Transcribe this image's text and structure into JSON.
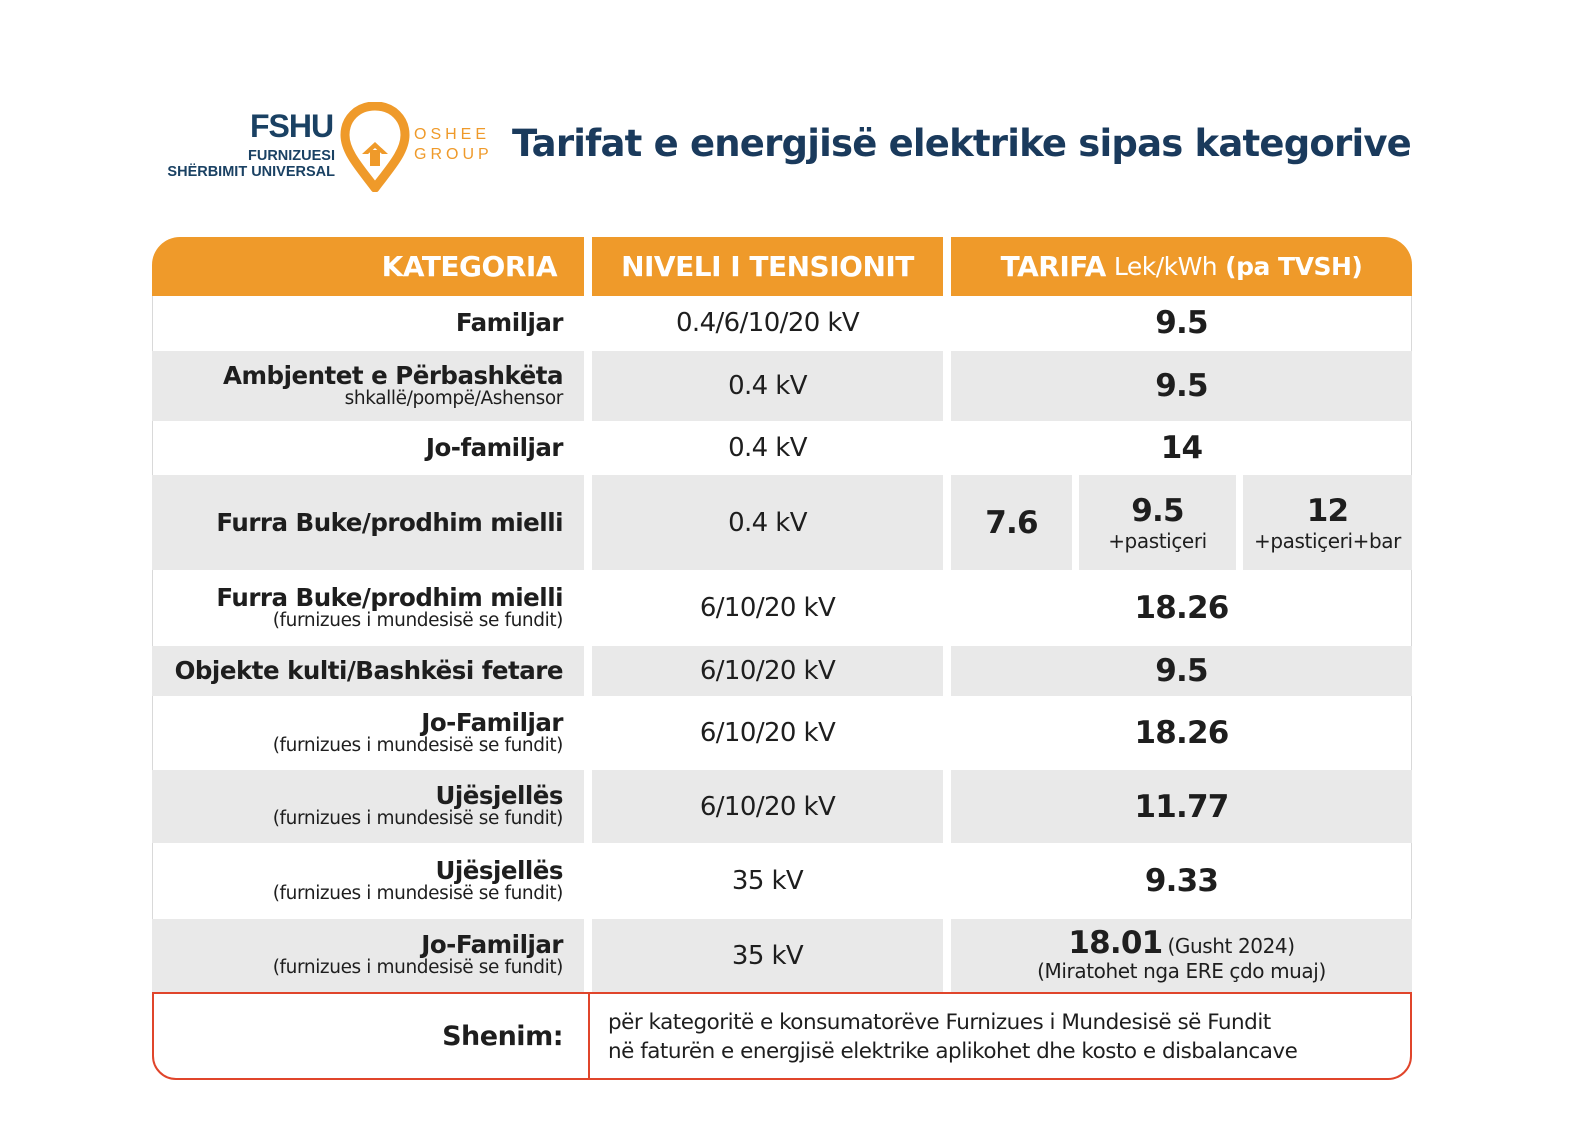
{
  "logo": {
    "abbr": "FSHU",
    "line1": "FURNIZUESI",
    "line2": "SHËRBIMIT UNIVERSAL",
    "group_line1": "OSHEE",
    "group_line2": "GROUP",
    "accent_color": "#ef9a2a",
    "brand_color": "#1a4163"
  },
  "title": "Tarifat e energjisë elektrike sipas kategorive",
  "table": {
    "header": {
      "kategoria": "KATEGORIA",
      "niveli": "NIVELI I TENSIONIT",
      "tarifa": "TARIFA",
      "tarifa_unit": "Lek/kWh",
      "tarifa_vat": "(pa TVSH)"
    },
    "header_color": "#ef9a2a",
    "rows": [
      {
        "kategoria": "Familjar",
        "sub": "",
        "niveli": "0.4/6/10/20 kV",
        "tarifa": "9.5",
        "tarifa_note": ""
      },
      {
        "kategoria": "Ambjentet e Përbashkëta",
        "sub": "shkallë/pompë/Ashensor",
        "niveli": "0.4 kV",
        "tarifa": "9.5",
        "tarifa_note": ""
      },
      {
        "kategoria": "Jo-familjar",
        "sub": "",
        "niveli": "0.4 kV",
        "tarifa": "14",
        "tarifa_note": ""
      },
      {
        "kategoria": "Furra Buke/prodhim mielli",
        "sub": "",
        "niveli": "0.4 kV",
        "split": [
          {
            "value": "7.6",
            "sub": ""
          },
          {
            "value": "9.5",
            "sub": "+pastiçeri"
          },
          {
            "value": "12",
            "sub": "+pastiçeri+bar"
          }
        ]
      },
      {
        "kategoria": "Furra Buke/prodhim mielli",
        "sub": "(furnizues i mundesisë se fundit)",
        "niveli": "6/10/20 kV",
        "tarifa": "18.26",
        "tarifa_note": ""
      },
      {
        "kategoria": "Objekte kulti/Bashkësi fetare",
        "sub": "",
        "niveli": "6/10/20 kV",
        "tarifa": "9.5",
        "tarifa_note": ""
      },
      {
        "kategoria": "Jo-Familjar",
        "sub": "(furnizues i mundesisë se fundit)",
        "niveli": "6/10/20 kV",
        "tarifa": "18.26",
        "tarifa_note": ""
      },
      {
        "kategoria": "Ujësjellës",
        "sub": "(furnizues i mundesisë se fundit)",
        "niveli": "6/10/20 kV",
        "tarifa": "11.77",
        "tarifa_note": ""
      },
      {
        "kategoria": "Ujësjellës",
        "sub": "(furnizues i mundesisë se fundit)",
        "niveli": "35 kV",
        "tarifa": "9.33",
        "tarifa_note": ""
      },
      {
        "kategoria": "Jo-Familjar",
        "sub": "(furnizues i mundesisë se fundit)",
        "niveli": "35 kV",
        "tarifa": "18.01",
        "tarifa_note": "(Gusht 2024)",
        "tarifa_sub": "(Miratohet nga ERE çdo muaj)"
      }
    ]
  },
  "note": {
    "label": "Shenim:",
    "line1": "për kategoritë e konsumatorëve Furnizues i Mundesisë së Fundit",
    "line2": "në faturën e energjisë elektrike aplikohet dhe kosto e disbalancave",
    "border_color": "#e0452b"
  }
}
